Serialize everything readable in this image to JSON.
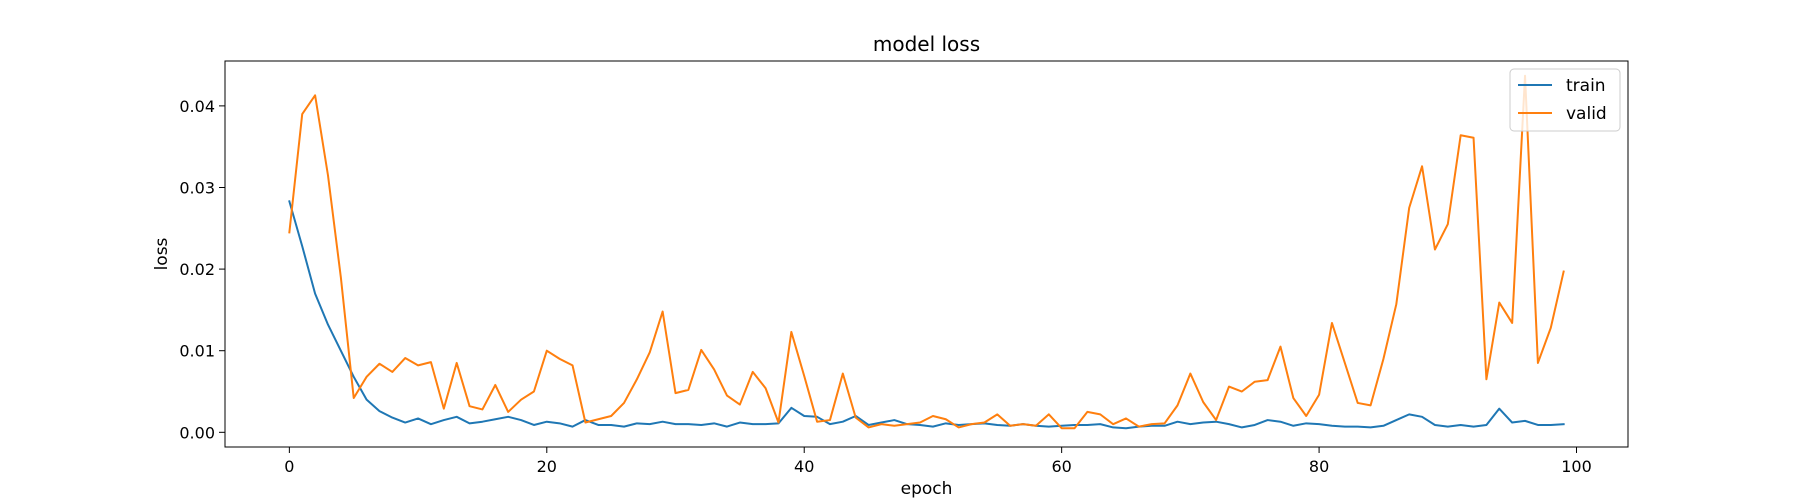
{
  "chart_data": {
    "type": "line",
    "title": "model loss",
    "xlabel": "epoch",
    "ylabel": "loss",
    "xlim": [
      -5,
      104
    ],
    "ylim": [
      -0.0018,
      0.0455
    ],
    "xticks": [
      0,
      20,
      40,
      60,
      80,
      100
    ],
    "yticks": [
      0.0,
      0.01,
      0.02,
      0.03,
      0.04
    ],
    "ytick_labels": [
      "0.00",
      "0.01",
      "0.02",
      "0.03",
      "0.04"
    ],
    "grid": false,
    "legend_position": "top-right",
    "series": [
      {
        "name": "train",
        "color": "#1f77b4",
        "values": [
          0.0283,
          0.0228,
          0.017,
          0.0132,
          0.01,
          0.0068,
          0.004,
          0.0026,
          0.0018,
          0.0012,
          0.0017,
          0.001,
          0.0015,
          0.0019,
          0.0011,
          0.0013,
          0.0016,
          0.0019,
          0.0015,
          0.0009,
          0.0013,
          0.0011,
          0.0007,
          0.0015,
          0.0009,
          0.0009,
          0.0007,
          0.0011,
          0.001,
          0.0013,
          0.001,
          0.001,
          0.0009,
          0.0011,
          0.0007,
          0.0012,
          0.001,
          0.001,
          0.0011,
          0.003,
          0.002,
          0.0019,
          0.001,
          0.0013,
          0.002,
          0.0009,
          0.0012,
          0.0015,
          0.001,
          0.0009,
          0.0007,
          0.0011,
          0.0009,
          0.001,
          0.0011,
          0.0009,
          0.0008,
          0.001,
          0.0008,
          0.0007,
          0.0008,
          0.0009,
          0.0009,
          0.001,
          0.0006,
          0.0005,
          0.0007,
          0.0008,
          0.0008,
          0.0013,
          0.001,
          0.0012,
          0.0013,
          0.001,
          0.0006,
          0.0009,
          0.0015,
          0.0013,
          0.0008,
          0.0011,
          0.001,
          0.0008,
          0.0007,
          0.0007,
          0.0006,
          0.0008,
          0.0015,
          0.0022,
          0.0019,
          0.0009,
          0.0007,
          0.0009,
          0.0007,
          0.0009,
          0.0029,
          0.0012,
          0.0014,
          0.0009,
          0.0009,
          0.001
        ]
      },
      {
        "name": "valid",
        "color": "#ff7f0e",
        "values": [
          0.0245,
          0.039,
          0.0413,
          0.0315,
          0.019,
          0.0042,
          0.0068,
          0.0084,
          0.0074,
          0.0091,
          0.0082,
          0.0086,
          0.0029,
          0.0085,
          0.0032,
          0.0028,
          0.0058,
          0.0025,
          0.004,
          0.005,
          0.01,
          0.009,
          0.0082,
          0.0012,
          0.0016,
          0.002,
          0.0036,
          0.0065,
          0.0098,
          0.0148,
          0.0048,
          0.0052,
          0.0101,
          0.0077,
          0.0045,
          0.0034,
          0.0074,
          0.0054,
          0.0012,
          0.0123,
          0.0069,
          0.0013,
          0.0015,
          0.0072,
          0.0018,
          0.0006,
          0.001,
          0.0008,
          0.001,
          0.0012,
          0.002,
          0.0016,
          0.0006,
          0.001,
          0.0012,
          0.0022,
          0.0008,
          0.001,
          0.0008,
          0.0022,
          0.0005,
          0.0005,
          0.0025,
          0.0022,
          0.001,
          0.0017,
          0.0007,
          0.001,
          0.0011,
          0.0033,
          0.0072,
          0.0037,
          0.0015,
          0.0056,
          0.005,
          0.0062,
          0.0064,
          0.0105,
          0.0042,
          0.002,
          0.0046,
          0.0134,
          0.0085,
          0.0036,
          0.0033,
          0.009,
          0.0157,
          0.0275,
          0.0326,
          0.0224,
          0.0255,
          0.0364,
          0.0361,
          0.0065,
          0.0159,
          0.0134,
          0.0437,
          0.0085,
          0.0128,
          0.0197
        ]
      }
    ]
  }
}
